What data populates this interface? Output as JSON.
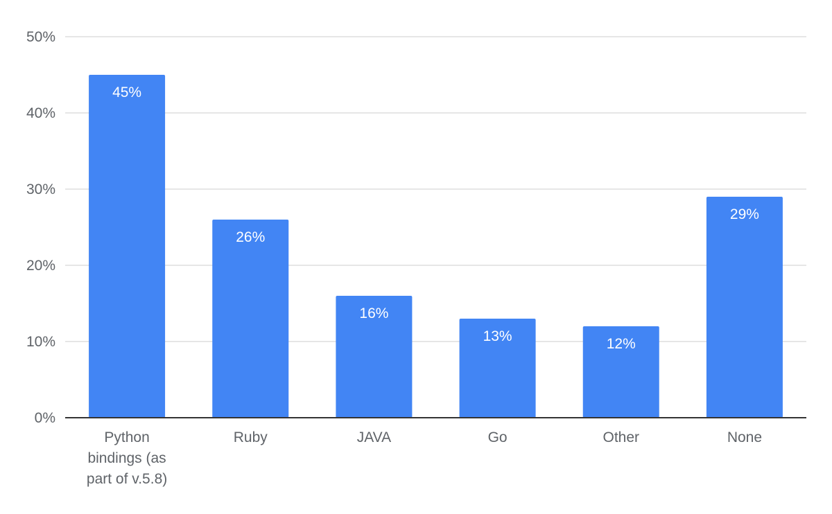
{
  "chart_data": {
    "type": "bar",
    "categories": [
      "Python bindings (as part of v.5.8)",
      "Ruby",
      "JAVA",
      "Go",
      "Other",
      "None"
    ],
    "category_lines": [
      [
        "Python",
        "bindings (as",
        "part of v.5.8)"
      ],
      [
        "Ruby"
      ],
      [
        "JAVA"
      ],
      [
        "Go"
      ],
      [
        "Other"
      ],
      [
        "None"
      ]
    ],
    "values": [
      45,
      26,
      16,
      13,
      12,
      29
    ],
    "data_labels": [
      "45%",
      "26%",
      "16%",
      "13%",
      "12%",
      "29%"
    ],
    "y_ticks": [
      0,
      10,
      20,
      30,
      40,
      50
    ],
    "y_tick_labels": [
      "0%",
      "10%",
      "20%",
      "30%",
      "40%",
      "50%"
    ],
    "ylim": [
      0,
      50
    ],
    "title": "",
    "xlabel": "",
    "ylabel": "",
    "grid": true,
    "legend": false,
    "bar_color": "#4285f4"
  }
}
